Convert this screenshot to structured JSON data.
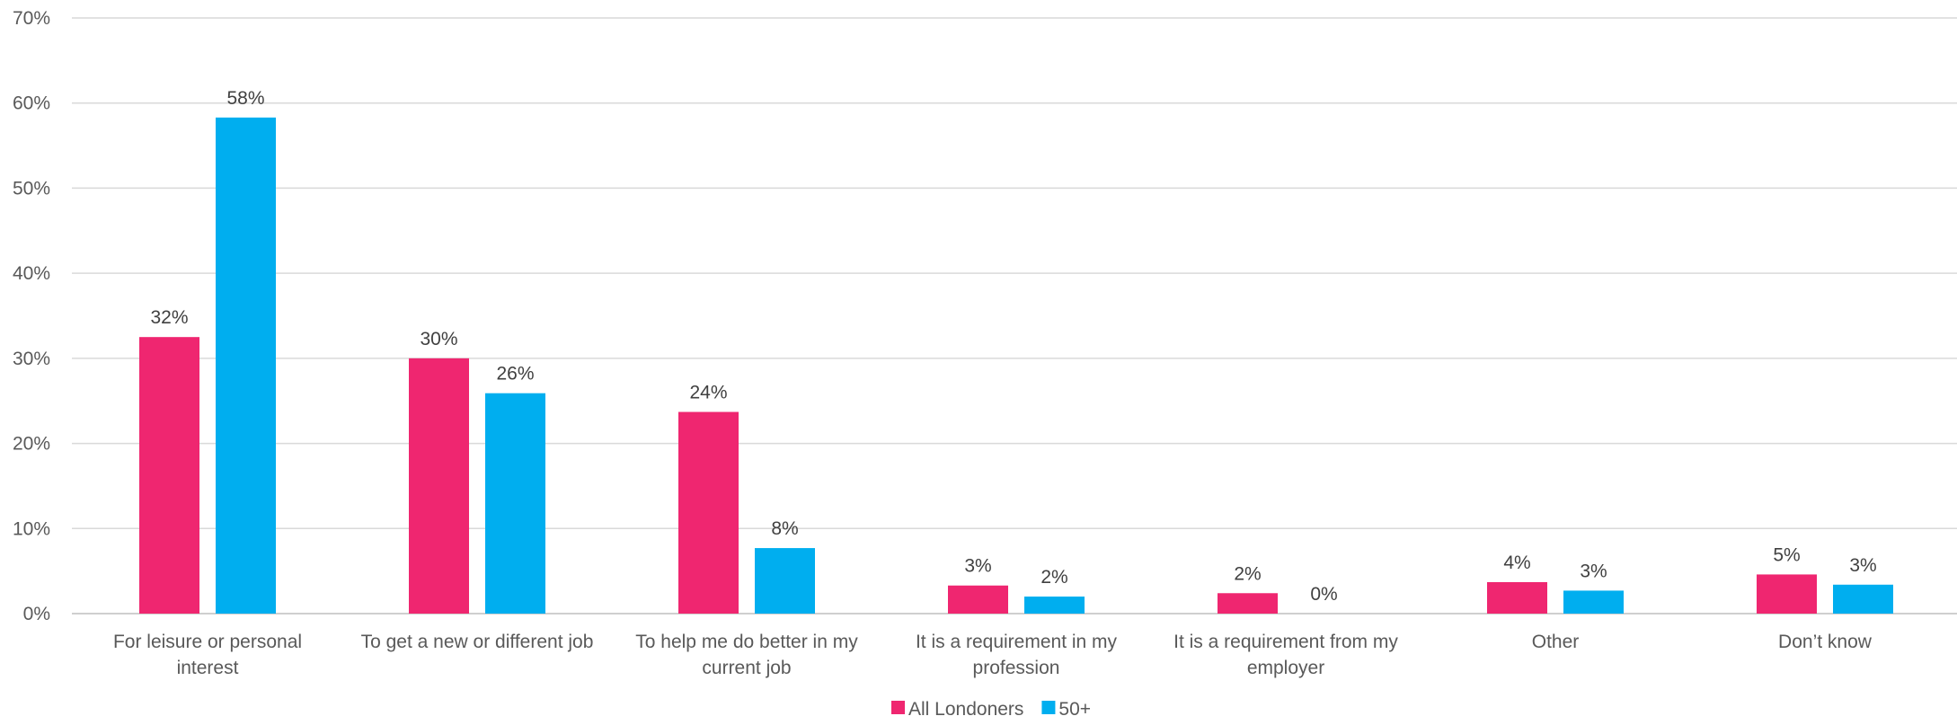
{
  "chart_data": {
    "type": "bar",
    "categories": [
      [
        "For leisure or personal",
        "interest"
      ],
      [
        "To get a new or different job"
      ],
      [
        "To help me do better in my",
        "current job"
      ],
      [
        "It is a requirement in my",
        "profession"
      ],
      [
        "It is a requirement from my",
        "employer"
      ],
      [
        "Other"
      ],
      [
        "Don’t know"
      ]
    ],
    "series": [
      {
        "name": "All Londoners",
        "color": "#ef2670",
        "values": [
          32.5,
          30,
          23.7,
          3.3,
          2.4,
          3.7,
          4.6
        ],
        "labels": [
          "32%",
          "30%",
          "24%",
          "3%",
          "2%",
          "4%",
          "5%"
        ]
      },
      {
        "name": "50+",
        "color": "#00aeef",
        "values": [
          58.3,
          25.9,
          7.7,
          2.0,
          0,
          2.7,
          3.4
        ],
        "labels": [
          "58%",
          "26%",
          "8%",
          "2%",
          "0%",
          "3%",
          "3%"
        ]
      }
    ],
    "title": "",
    "xlabel": "",
    "ylabel": "",
    "ylim": [
      0,
      70
    ],
    "yticks": [
      0,
      10,
      20,
      30,
      40,
      50,
      60,
      70
    ],
    "ytick_labels": [
      "0%",
      "10%",
      "20%",
      "30%",
      "40%",
      "50%",
      "60%",
      "70%"
    ],
    "grid": true,
    "legend_position": "bottom-center"
  }
}
